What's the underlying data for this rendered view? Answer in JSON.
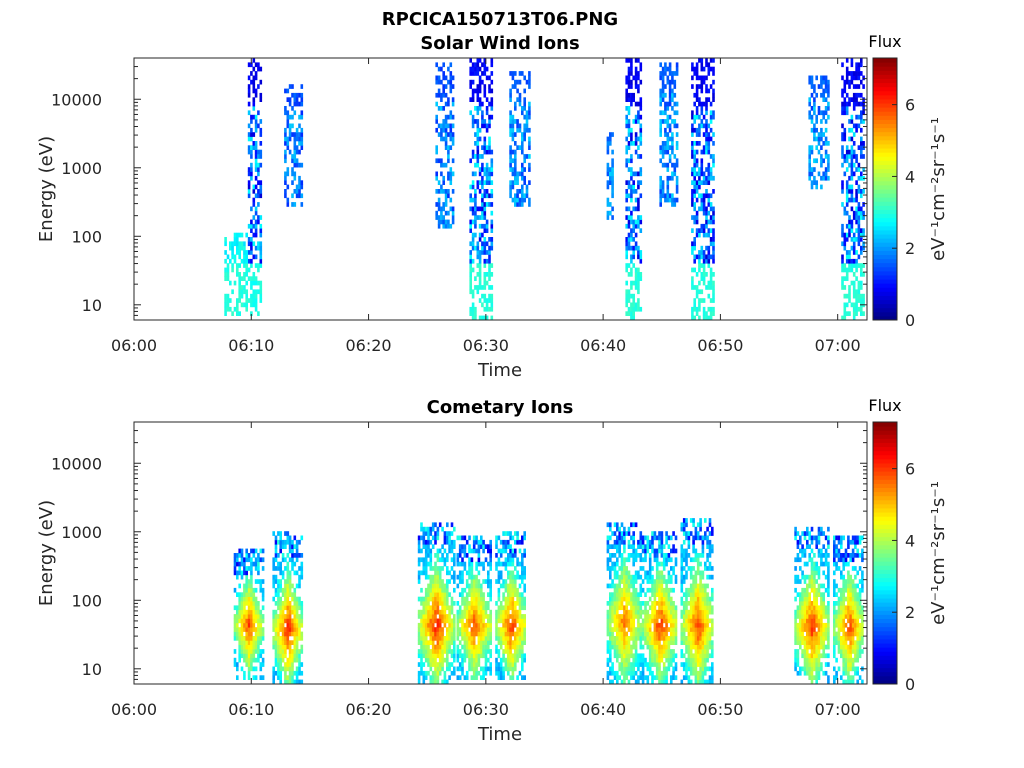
{
  "figure_title": "RPCICA150713T06.PNG",
  "colorbar": {
    "title": "Flux",
    "unit_label": "eV⁻¹cm⁻²sr⁻¹s⁻¹",
    "ticks": [
      "0",
      "2",
      "4",
      "6"
    ],
    "range": [
      0,
      7.3
    ],
    "colormap": "jet"
  },
  "chart_data": [
    {
      "type": "heatmap",
      "title": "Solar Wind Ions",
      "xlabel": "Time",
      "ylabel": "Energy (eV)",
      "x_ticks": [
        "06:00",
        "06:10",
        "06:20",
        "06:30",
        "06:40",
        "06:50",
        "07:00"
      ],
      "y_ticks": [
        "10",
        "100",
        "1000",
        "10000"
      ],
      "xlim_min": [
        0,
        62.5
      ],
      "ylim": [
        6,
        40000
      ],
      "y_scale": "log",
      "grid": false,
      "bursts": [
        {
          "t": [
            9.7,
            10.7
          ],
          "e": [
            8,
            40000
          ],
          "flux": [
            0.6,
            2.8
          ],
          "low_flux": 2.9
        },
        {
          "t": [
            12.8,
            14.2
          ],
          "e": [
            300,
            15000
          ],
          "flux": [
            1.2,
            2.4
          ],
          "low_flux": 2.6
        },
        {
          "t": [
            7.7,
            9.6
          ],
          "e": [
            8,
            100
          ],
          "flux": [
            2.5,
            2.9
          ],
          "low_flux": 3.0
        },
        {
          "t": [
            25.7,
            27.2
          ],
          "e": [
            150,
            30000
          ],
          "flux": [
            1.2,
            2.4
          ],
          "low_flux": 2.6
        },
        {
          "t": [
            28.6,
            30.4
          ],
          "e": [
            6,
            40000
          ],
          "flux": [
            0.6,
            2.8
          ],
          "low_flux": 3.0
        },
        {
          "t": [
            32.0,
            33.7
          ],
          "e": [
            300,
            25000
          ],
          "flux": [
            1.3,
            2.5
          ],
          "low_flux": 2.6
        },
        {
          "t": [
            40.3,
            40.9
          ],
          "e": [
            200,
            3000
          ],
          "flux": [
            1.5,
            2.5
          ],
          "low_flux": 2.6
        },
        {
          "t": [
            41.9,
            43.2
          ],
          "e": [
            6,
            40000
          ],
          "flux": [
            0.6,
            2.8
          ],
          "low_flux": 3.0
        },
        {
          "t": [
            44.8,
            46.3
          ],
          "e": [
            300,
            30000
          ],
          "flux": [
            1.3,
            2.5
          ],
          "low_flux": 2.6
        },
        {
          "t": [
            47.5,
            49.4
          ],
          "e": [
            6,
            40000
          ],
          "flux": [
            0.6,
            2.8
          ],
          "low_flux": 3.0
        },
        {
          "t": [
            57.5,
            59.2
          ],
          "e": [
            500,
            20000
          ],
          "flux": [
            1.3,
            2.5
          ],
          "low_flux": 2.6
        },
        {
          "t": [
            60.3,
            62.2
          ],
          "e": [
            6,
            40000
          ],
          "flux": [
            0.6,
            2.8
          ],
          "low_flux": 3.0
        }
      ]
    },
    {
      "type": "heatmap",
      "title": "Cometary Ions",
      "xlabel": "Time",
      "ylabel": "Energy (eV)",
      "x_ticks": [
        "06:00",
        "06:10",
        "06:20",
        "06:30",
        "06:40",
        "06:50",
        "07:00"
      ],
      "y_ticks": [
        "10",
        "100",
        "1000",
        "10000"
      ],
      "xlim_min": [
        0,
        62.5
      ],
      "ylim": [
        6,
        40000
      ],
      "y_scale": "log",
      "grid": false,
      "bursts": [
        {
          "t": [
            8.5,
            10.9
          ],
          "e": [
            8,
            500
          ],
          "flux": [
            2.3,
            5.9
          ],
          "peak_e": 40
        },
        {
          "t": [
            11.8,
            14.3
          ],
          "e": [
            6,
            900
          ],
          "flux": [
            2.3,
            6.2
          ],
          "peak_e": 35
        },
        {
          "t": [
            24.2,
            27.2
          ],
          "e": [
            6,
            1300
          ],
          "flux": [
            2.3,
            6.3
          ],
          "peak_e": 40
        },
        {
          "t": [
            27.5,
            30.4
          ],
          "e": [
            8,
            800
          ],
          "flux": [
            2.3,
            5.9
          ],
          "peak_e": 40
        },
        {
          "t": [
            30.8,
            33.4
          ],
          "e": [
            8,
            900
          ],
          "flux": [
            2.3,
            6.1
          ],
          "peak_e": 40
        },
        {
          "t": [
            40.3,
            43.2
          ],
          "e": [
            6,
            1300
          ],
          "flux": [
            2.3,
            5.6
          ],
          "peak_e": 45
        },
        {
          "t": [
            43.3,
            46.3
          ],
          "e": [
            6,
            900
          ],
          "flux": [
            2.3,
            6.1
          ],
          "peak_e": 40
        },
        {
          "t": [
            46.6,
            49.4
          ],
          "e": [
            6,
            1400
          ],
          "flux": [
            2.3,
            6.0
          ],
          "peak_e": 40
        },
        {
          "t": [
            56.3,
            59.2
          ],
          "e": [
            6,
            1100
          ],
          "flux": [
            2.3,
            6.1
          ],
          "peak_e": 38
        },
        {
          "t": [
            59.6,
            62.2
          ],
          "e": [
            6,
            800
          ],
          "flux": [
            2.3,
            5.9
          ],
          "peak_e": 38
        }
      ]
    }
  ]
}
